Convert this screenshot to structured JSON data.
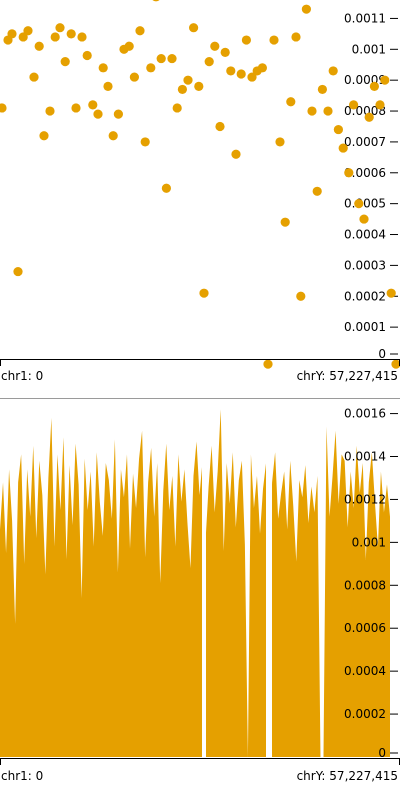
{
  "panels": [
    {
      "id": "top",
      "genome_start_label": "chr1: 0",
      "genome_end_label": "chrY: 57,227,415"
    },
    {
      "id": "bottom",
      "genome_start_label": "chr1: 0",
      "genome_end_label": "chrY: 57,227,415"
    }
  ],
  "chart_data": [
    {
      "type": "scatter",
      "color": "#e5a000",
      "ylim": [
        0,
        0.00115
      ],
      "yticks": [
        "0",
        "0.0001",
        "0.0002",
        "0.0003",
        "0.0004",
        "0.0005",
        "0.0006",
        "0.0007",
        "0.0008",
        "0.0009",
        "0.001",
        "0.0011"
      ],
      "ytick_values": [
        0,
        0.0001,
        0.0002,
        0.0003,
        0.0004,
        0.0005,
        0.0006,
        0.0007,
        0.0008,
        0.0009,
        0.001,
        0.0011
      ],
      "xlim": [
        0,
        1
      ],
      "points": [
        [
          0.005,
          0.00081
        ],
        [
          0.02,
          0.00103
        ],
        [
          0.03,
          0.00105
        ],
        [
          0.045,
          0.00028
        ],
        [
          0.058,
          0.00104
        ],
        [
          0.07,
          0.00106
        ],
        [
          0.085,
          0.00091
        ],
        [
          0.098,
          0.00101
        ],
        [
          0.11,
          0.00072
        ],
        [
          0.125,
          0.0008
        ],
        [
          0.138,
          0.00104
        ],
        [
          0.15,
          0.00107
        ],
        [
          0.163,
          0.00096
        ],
        [
          0.178,
          0.00105
        ],
        [
          0.19,
          0.00081
        ],
        [
          0.205,
          0.00104
        ],
        [
          0.218,
          0.00098
        ],
        [
          0.232,
          0.00082
        ],
        [
          0.245,
          0.00079
        ],
        [
          0.258,
          0.00094
        ],
        [
          0.27,
          0.00088
        ],
        [
          0.283,
          0.00072
        ],
        [
          0.296,
          0.00079
        ],
        [
          0.31,
          0.001
        ],
        [
          0.323,
          0.00101
        ],
        [
          0.336,
          0.00091
        ],
        [
          0.35,
          0.00106
        ],
        [
          0.363,
          0.0007
        ],
        [
          0.377,
          0.00094
        ],
        [
          0.39,
          0.00117
        ],
        [
          0.403,
          0.00097
        ],
        [
          0.416,
          0.00055
        ],
        [
          0.43,
          0.00097
        ],
        [
          0.443,
          0.00081
        ],
        [
          0.456,
          0.00087
        ],
        [
          0.47,
          0.0009
        ],
        [
          0.484,
          0.00107
        ],
        [
          0.497,
          0.00088
        ],
        [
          0.51,
          0.00021
        ],
        [
          0.523,
          0.00096
        ],
        [
          0.537,
          0.00101
        ],
        [
          0.55,
          0.00075
        ],
        [
          0.563,
          0.00099
        ],
        [
          0.577,
          0.00093
        ],
        [
          0.59,
          0.00066
        ],
        [
          0.603,
          0.00092
        ],
        [
          0.616,
          0.00103
        ],
        [
          0.63,
          0.00091
        ],
        [
          0.643,
          0.00093
        ],
        [
          0.656,
          0.00094
        ],
        [
          0.67,
          -2e-05
        ],
        [
          0.685,
          0.00103
        ],
        [
          0.7,
          0.0007
        ],
        [
          0.713,
          0.00044
        ],
        [
          0.727,
          0.00083
        ],
        [
          0.74,
          0.00104
        ],
        [
          0.752,
          0.0002
        ],
        [
          0.766,
          0.00113
        ],
        [
          0.78,
          0.0008
        ],
        [
          0.793,
          0.00054
        ],
        [
          0.806,
          0.00087
        ],
        [
          0.82,
          0.0008
        ],
        [
          0.833,
          0.00093
        ],
        [
          0.846,
          0.00074
        ],
        [
          0.858,
          0.00068
        ],
        [
          0.872,
          0.0006
        ],
        [
          0.884,
          0.00082
        ],
        [
          0.897,
          0.0005
        ],
        [
          0.91,
          0.00045
        ],
        [
          0.923,
          0.00078
        ],
        [
          0.936,
          0.00088
        ],
        [
          0.95,
          0.00082
        ],
        [
          0.962,
          0.0009
        ],
        [
          0.978,
          0.00021
        ],
        [
          0.99,
          -2e-05
        ]
      ]
    },
    {
      "type": "area",
      "color": "#e5a000",
      "ylim": [
        0,
        0.00164
      ],
      "yticks": [
        "0",
        "0.0002",
        "0.0004",
        "0.0006",
        "0.0008",
        "0.001",
        "0.0012",
        "0.0014",
        "0.0016"
      ],
      "ytick_values": [
        0,
        0.0002,
        0.0004,
        0.0006,
        0.0008,
        0.001,
        0.0012,
        0.0014,
        0.0016
      ],
      "xlim": [
        0,
        1
      ],
      "x_extent": [
        0,
        0.975
      ],
      "gaps": [
        [
          0.505,
          0.515
        ],
        [
          0.665,
          0.68
        ]
      ],
      "values": [
        0.00106,
        0.00128,
        0.00095,
        0.00134,
        0.0011,
        0.00062,
        0.00128,
        0.00141,
        0.0009,
        0.00134,
        0.00112,
        0.00145,
        0.00102,
        0.00138,
        0.00122,
        0.00085,
        0.0013,
        0.00158,
        0.00098,
        0.00141,
        0.00115,
        0.00149,
        0.00092,
        0.00136,
        0.00108,
        0.00146,
        0.00127,
        0.00074,
        0.00139,
        0.00115,
        0.00133,
        0.00098,
        0.00142,
        0.00119,
        0.00103,
        0.00137,
        0.00129,
        0.00111,
        0.00148,
        0.00086,
        0.00134,
        0.00121,
        0.00141,
        0.00097,
        0.00132,
        0.00116,
        0.00139,
        0.00152,
        0.00093,
        0.00128,
        0.00144,
        0.00112,
        0.00137,
        0.00081,
        0.00124,
        0.00146,
        0.00115,
        0.00131,
        0.00098,
        0.00141,
        0.00119,
        0.00134,
        0.00109,
        0.00088,
        0.00131,
        0.00147,
        0.00122,
        0.00138,
        0.00101,
        0.00126,
        0.00145,
        0.00114,
        0.00133,
        0.00162,
        0.00096,
        0.00137,
        0.00118,
        0.00142,
        0.00107,
        0.00129,
        0.00138,
        0.00099,
        0.0,
        0.00141,
        0.00116,
        0.00131,
        0.00104,
        0.00125,
        0.00137,
        0.00094,
        0.00128,
        0.00142,
        0.00111,
        0.00123,
        0.00133,
        0.00106,
        0.00138,
        0.00117,
        0.00091,
        0.00129,
        0.00121,
        0.00136,
        0.00109,
        0.00126,
        0.00114,
        0.00131,
        0.0,
        0.0,
        0.00154,
        0.00112,
        0.00131,
        0.00152,
        0.00118,
        0.00141,
        0.00138,
        0.00107,
        0.00133,
        0.00116,
        0.00145,
        0.00123,
        0.00137,
        0.00092,
        0.00128,
        0.00142,
        0.00119,
        0.00098,
        0.00133,
        0.00114,
        0.00127,
        0.00112
      ]
    }
  ]
}
